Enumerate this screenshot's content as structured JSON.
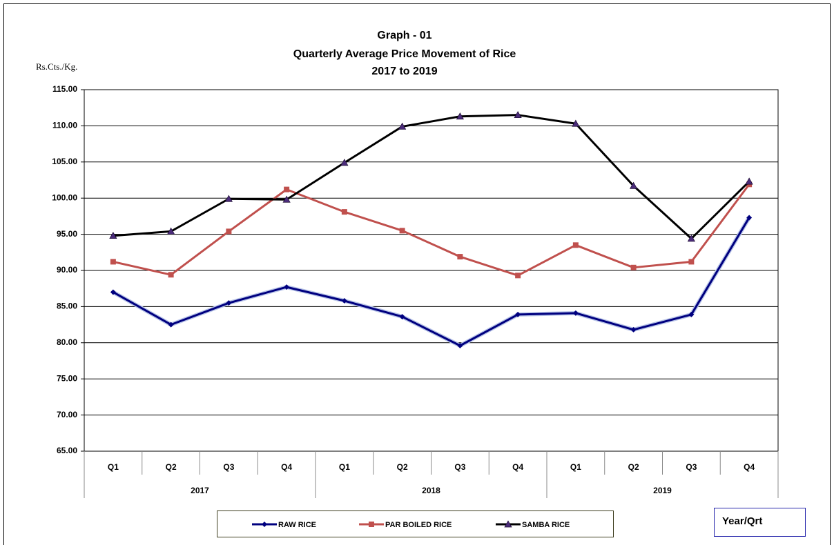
{
  "chart_data": {
    "type": "line",
    "title": [
      "Graph - 01",
      "Quarterly Average Price Movement of Rice",
      "2017 to 2019"
    ],
    "y_label": "Rs.Cts./Kg.",
    "x_label": "Year/Qrt",
    "categories": [
      "Q1",
      "Q2",
      "Q3",
      "Q4",
      "Q1",
      "Q2",
      "Q3",
      "Q4",
      "Q1",
      "Q2",
      "Q3",
      "Q4"
    ],
    "years": [
      "2017",
      "2018",
      "2019"
    ],
    "ylim": [
      65,
      115
    ],
    "yticks": [
      {
        "value": 65,
        "label": "65.00"
      },
      {
        "value": 70,
        "label": "70.00"
      },
      {
        "value": 75,
        "label": "75.00"
      },
      {
        "value": 80,
        "label": "80.00"
      },
      {
        "value": 85,
        "label": "85.00"
      },
      {
        "value": 90,
        "label": "90.00"
      },
      {
        "value": 95,
        "label": "95.00"
      },
      {
        "value": 100,
        "label": "100.00"
      },
      {
        "value": 105,
        "label": "105.00"
      },
      {
        "value": 110,
        "label": "110.00"
      },
      {
        "value": 115,
        "label": "115.00"
      }
    ],
    "grid": true,
    "legend": "bottom",
    "series": [
      {
        "name": "RAW RICE",
        "color": "#00007f",
        "marker": "diamond",
        "marker_color": "#00007f",
        "values": [
          87.0,
          82.5,
          85.5,
          87.7,
          85.8,
          83.6,
          79.6,
          83.9,
          84.1,
          81.8,
          83.9,
          97.3
        ]
      },
      {
        "name": "PAR BOILED RICE",
        "color": "#c0504d",
        "marker": "square",
        "marker_color": "#c0504d",
        "values": [
          91.2,
          89.4,
          95.4,
          101.2,
          98.1,
          95.5,
          91.9,
          89.3,
          93.5,
          90.4,
          91.2,
          101.9
        ]
      },
      {
        "name": "SAMBA RICE",
        "color": "#000000",
        "marker": "triangle",
        "marker_color": "#4b2c7a",
        "values": [
          94.8,
          95.4,
          99.9,
          99.8,
          104.9,
          109.9,
          111.3,
          111.5,
          110.3,
          101.7,
          94.4,
          102.3
        ]
      }
    ]
  }
}
